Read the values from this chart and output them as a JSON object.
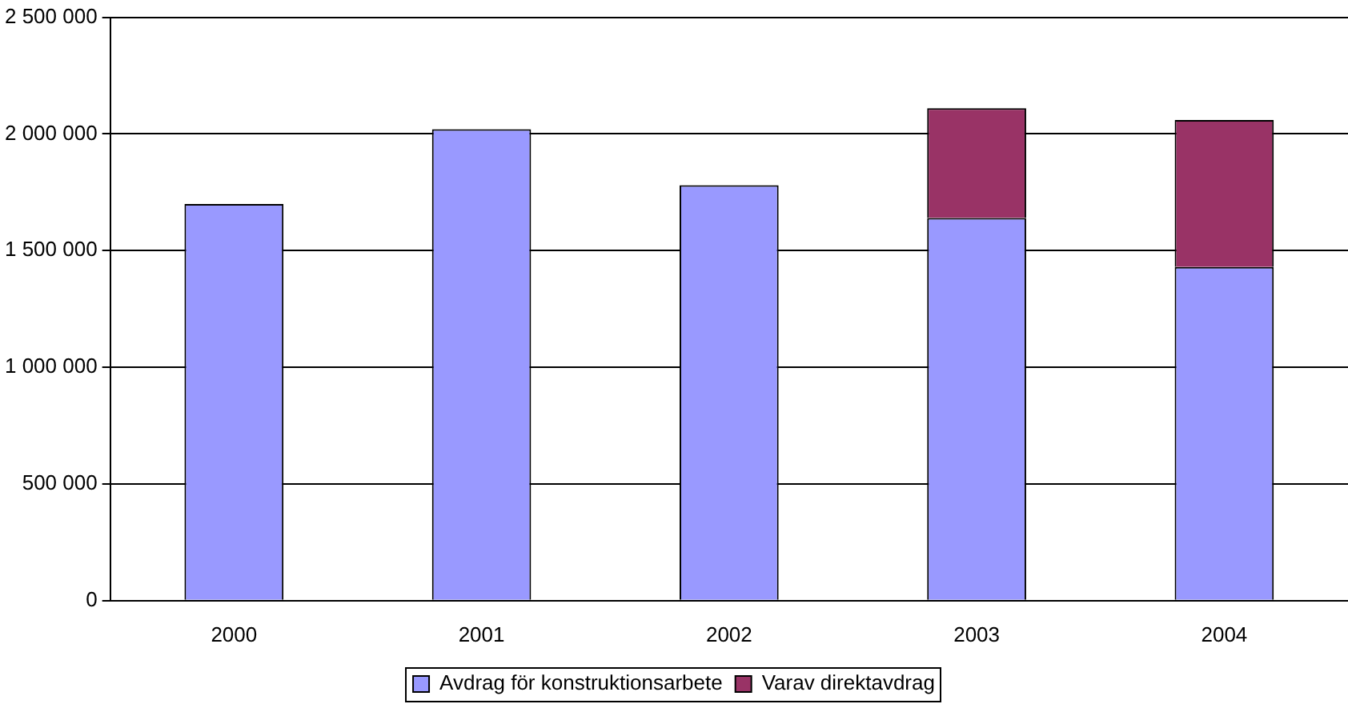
{
  "chart_data": {
    "type": "bar",
    "stacked": true,
    "categories": [
      "2000",
      "2001",
      "2002",
      "2003",
      "2004"
    ],
    "series": [
      {
        "name": "Avdrag för konstruktionsarbete",
        "color": "#9999ff",
        "values": [
          1700000,
          2020000,
          1780000,
          1640000,
          1430000
        ]
      },
      {
        "name": "Varav direktavdrag",
        "color": "#993366",
        "values": [
          null,
          null,
          null,
          470000,
          630000
        ]
      }
    ],
    "ylim": [
      0,
      2500000
    ],
    "yticks": [
      {
        "value": 0,
        "label": "0"
      },
      {
        "value": 500000,
        "label": "500 000"
      },
      {
        "value": 1000000,
        "label": "1 000 000"
      },
      {
        "value": 1500000,
        "label": "1 500 000"
      },
      {
        "value": 2000000,
        "label": "2 000 000"
      },
      {
        "value": 2500000,
        "label": "2 500 000"
      }
    ],
    "grid": "y",
    "legend": "bottom"
  }
}
